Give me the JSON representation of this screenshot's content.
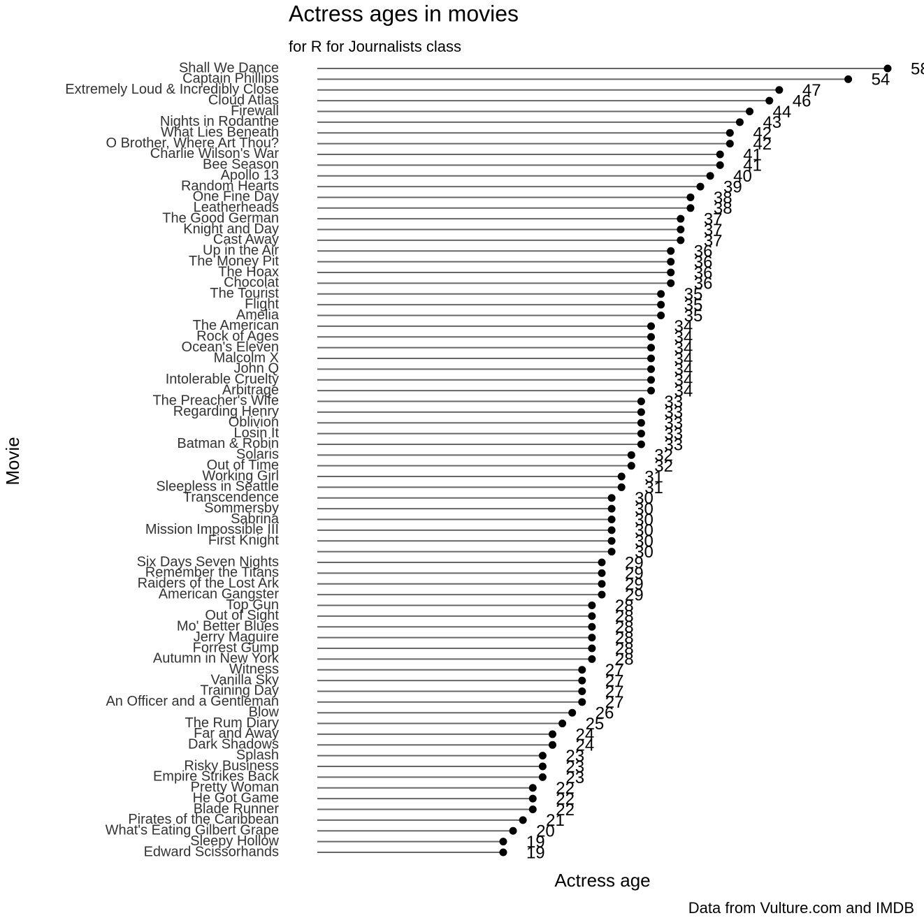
{
  "chart_data": {
    "type": "lollipop",
    "title": "Actress ages in movies",
    "subtitle": "for R for Journalists class",
    "x_label": "Actress age",
    "y_label": "Movie",
    "caption": "Data from Vulture.com and IMDB",
    "categories": [
      "Shall We Dance",
      "Captain Phillips",
      "Extremely Loud & Incredibly Close",
      "Cloud Atlas",
      "Firewall",
      "Nights in Rodanthe",
      "What Lies Beneath",
      "O Brother, Where Art Thou?",
      "Charlie Wilson's War",
      "Bee Season",
      "Apollo 13",
      "Random Hearts",
      "One Fine Day",
      "Leatherheads",
      "The Good German",
      "Knight and Day",
      "Cast Away",
      "Up in the Air",
      "The Money Pit",
      "The Hoax",
      "Chocolat",
      "The Tourist",
      "Flight",
      "Amelia",
      "The American",
      "Rock of Ages",
      "Ocean's Eleven",
      "Malcolm X",
      "John Q",
      "Intolerable Cruelty",
      "Arbitrage",
      "The Preacher's Wife",
      "Regarding Henry",
      "Oblivion",
      "Losin It",
      "Batman & Robin",
      "Solaris",
      "Out of Time",
      "Working Girl",
      "Sleepless in Seattle",
      "Transcendence",
      "Sommersby",
      "Sabrina",
      "Mission Impossible III",
      "First Knight",
      null,
      "Six Days Seven Nights",
      "Remember the Titans",
      "Raiders of the Lost Ark",
      "American Gangster",
      "Top Gun",
      "Out of Sight",
      "Mo' Better Blues",
      "Jerry Maguire",
      "Forrest Gump",
      "Autumn in New York",
      "Witness",
      "Vanilla Sky",
      "Training Day",
      "An Officer and a Gentleman",
      "Blow",
      "The Rum Diary",
      "Far and Away",
      "Dark Shadows",
      "Splash",
      "Risky Business",
      "Empire Strikes Back",
      "Pretty Woman",
      "He Got Game",
      "Blade Runner",
      "Pirates of the Caribbean",
      "What's Eating Gilbert Grape",
      "Sleepy Hollow",
      "Edward Scissorhands"
    ],
    "values": [
      58,
      54,
      47,
      46,
      44,
      43,
      42,
      42,
      41,
      41,
      40,
      39,
      38,
      38,
      37,
      37,
      37,
      36,
      36,
      36,
      36,
      35,
      35,
      35,
      34,
      34,
      34,
      34,
      34,
      34,
      34,
      33,
      33,
      33,
      33,
      33,
      32,
      32,
      31,
      31,
      30,
      30,
      30,
      30,
      30,
      30,
      29,
      29,
      29,
      29,
      28,
      28,
      28,
      28,
      28,
      28,
      27,
      27,
      27,
      27,
      26,
      25,
      24,
      24,
      23,
      23,
      23,
      22,
      22,
      22,
      21,
      20,
      19,
      19
    ],
    "color": "#000000",
    "segment_color": "#666666",
    "xlim": [
      0,
      58
    ]
  }
}
